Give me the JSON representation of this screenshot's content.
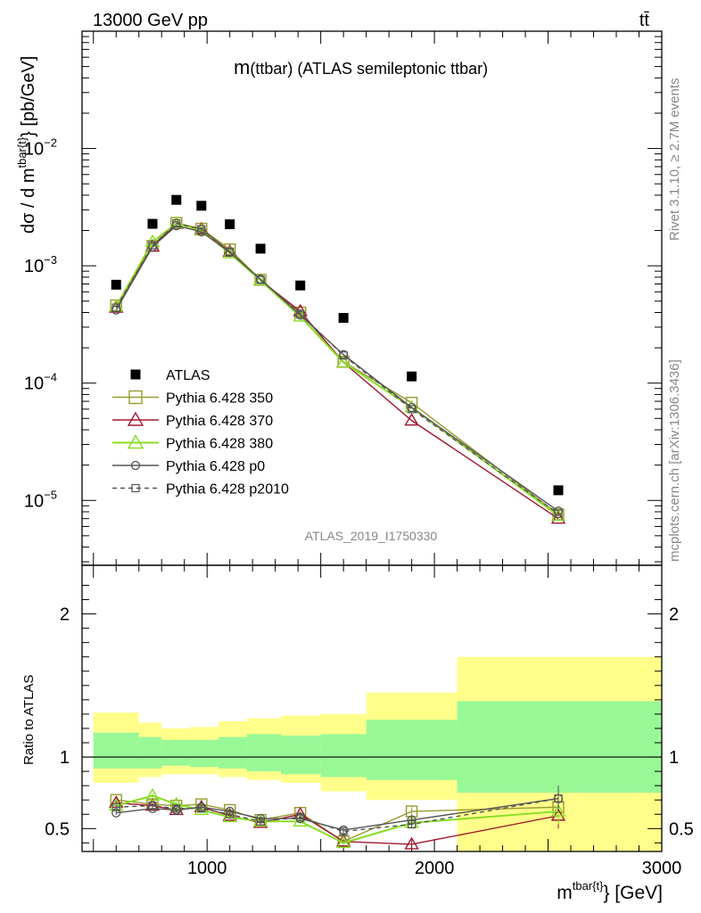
{
  "header": {
    "left": "13000 GeV pp",
    "right": "tt̄"
  },
  "side_texts": {
    "top": "Rivet 3.1.10, ≥ 2.7M events",
    "bottom": "mcplots.cern.ch [arXiv:1306.3436]"
  },
  "chart_data": [
    {
      "type": "scatter",
      "title_main": "m",
      "title_sub": "(ttbar)",
      "title_rest": " (ATLAS semileptonic ttbar)",
      "watermark": "ATLAS_2019_I1750330",
      "ylabel": "dσ / d m^{tbar{t}} [pb/GeV]",
      "y_scale": "log",
      "ylim": [
        2.8e-06,
        0.1
      ],
      "xlim": [
        450,
        3000
      ],
      "y_ticks": [
        {
          "value": 1e-05,
          "base": "10",
          "exp": "−5"
        },
        {
          "value": 0.0001,
          "base": "10",
          "exp": "−4"
        },
        {
          "value": 0.001,
          "base": "10",
          "exp": "−3"
        },
        {
          "value": 0.01,
          "base": "10",
          "exp": "−2"
        }
      ],
      "legend_position": "bottom-left",
      "bins": [
        [
          500,
          700
        ],
        [
          700,
          800
        ],
        [
          800,
          925
        ],
        [
          925,
          1050
        ],
        [
          1050,
          1175
        ],
        [
          1175,
          1325
        ],
        [
          1325,
          1500
        ],
        [
          1500,
          1700
        ],
        [
          1700,
          2100
        ],
        [
          2100,
          3000
        ]
      ],
      "x": [
        600,
        760,
        865,
        975,
        1100,
        1235,
        1410,
        1600,
        1900,
        2545
      ],
      "atlas": [
        0.00069,
        0.00228,
        0.00365,
        0.00325,
        0.00226,
        0.0014,
        0.00068,
        0.00036,
        0.000114,
        1.22e-05
      ],
      "series": [
        {
          "name": "ATLAS",
          "marker": "filled-square",
          "color": "#000000"
        },
        {
          "name": "Pythia 6.428 350",
          "marker": "open-square",
          "color": "#9a9a30",
          "dashed": false,
          "values": [
            0.00046,
            0.00148,
            0.00232,
            0.00207,
            0.00138,
            0.00076,
            0.0004,
            0.000152,
            6.8e-05,
            7.6e-06
          ]
        },
        {
          "name": "Pythia 6.428 370",
          "marker": "open-triangle",
          "color": "#a01830",
          "dashed": false,
          "values": [
            0.00044,
            0.00146,
            0.00228,
            0.00205,
            0.00132,
            0.00075,
            0.00041,
            0.00015,
            4.8e-05,
            7e-06
          ]
        },
        {
          "name": "Pythia 6.428 380",
          "marker": "open-triangle",
          "color": "#88dd22",
          "dashed": false,
          "values": [
            0.00045,
            0.0016,
            0.0023,
            0.002,
            0.00128,
            0.00075,
            0.00037,
            0.00015,
            6.2e-05,
            7.4e-06
          ]
        },
        {
          "name": "Pythia 6.428 p0",
          "marker": "open-circle",
          "color": "#555555",
          "dashed": false,
          "values": [
            0.00042,
            0.00145,
            0.0022,
            0.00195,
            0.0013,
            0.00077,
            0.00038,
            0.000175,
            6.2e-05,
            8.1e-06
          ]
        },
        {
          "name": "Pythia 6.428 p2010",
          "marker": "open-square-small",
          "color": "#555555",
          "dashed": true,
          "values": [
            0.00044,
            0.0015,
            0.0023,
            0.00205,
            0.00132,
            0.00076,
            0.00039,
            0.000172,
            6e-05,
            7.7e-06
          ]
        }
      ]
    },
    {
      "type": "scatter",
      "ylabel": "Ratio to ATLAS",
      "xlabel": "m^{tbar{t}} [GeV]",
      "ylim": [
        0.34,
        2.34
      ],
      "y_ticks": [
        0.5,
        1,
        2
      ],
      "y_tick_labels": [
        "0.5",
        "1",
        "2"
      ],
      "x_ticks": [
        1000,
        2000,
        3000
      ],
      "x_tick_labels": [
        "1000",
        "2000",
        "3000"
      ],
      "reference_line": 1,
      "band_inner": [
        [
          0.92,
          1.17
        ],
        [
          0.92,
          1.14
        ],
        [
          0.94,
          1.12
        ],
        [
          0.93,
          1.12
        ],
        [
          0.92,
          1.14
        ],
        [
          0.9,
          1.16
        ],
        [
          0.88,
          1.15
        ],
        [
          0.86,
          1.16
        ],
        [
          0.84,
          1.26
        ],
        [
          0.75,
          1.39
        ]
      ],
      "band_outer": [
        [
          0.82,
          1.31
        ],
        [
          0.86,
          1.24
        ],
        [
          0.88,
          1.2
        ],
        [
          0.88,
          1.21
        ],
        [
          0.86,
          1.25
        ],
        [
          0.84,
          1.27
        ],
        [
          0.82,
          1.29
        ],
        [
          0.76,
          1.3
        ],
        [
          0.7,
          1.45
        ],
        [
          0.3,
          1.7
        ]
      ],
      "ratios": [
        {
          "name": "Pythia 6.428 350",
          "values": [
            0.7,
            0.67,
            0.66,
            0.67,
            0.63,
            0.56,
            0.61,
            0.41,
            0.62,
            0.65
          ]
        },
        {
          "name": "Pythia 6.428 370",
          "values": [
            0.68,
            0.66,
            0.63,
            0.65,
            0.59,
            0.54,
            0.6,
            0.41,
            0.39,
            0.59
          ]
        },
        {
          "name": "Pythia 6.428 380",
          "values": [
            0.66,
            0.73,
            0.67,
            0.63,
            0.58,
            0.55,
            0.55,
            0.4,
            0.54,
            0.62
          ]
        },
        {
          "name": "Pythia 6.428 p0",
          "values": [
            0.61,
            0.64,
            0.63,
            0.65,
            0.62,
            0.57,
            0.57,
            0.49,
            0.56,
            0.71
          ]
        },
        {
          "name": "Pythia 6.428 p2010",
          "values": [
            0.65,
            0.66,
            0.64,
            0.64,
            0.6,
            0.55,
            0.58,
            0.48,
            0.53,
            0.71
          ]
        }
      ]
    }
  ]
}
